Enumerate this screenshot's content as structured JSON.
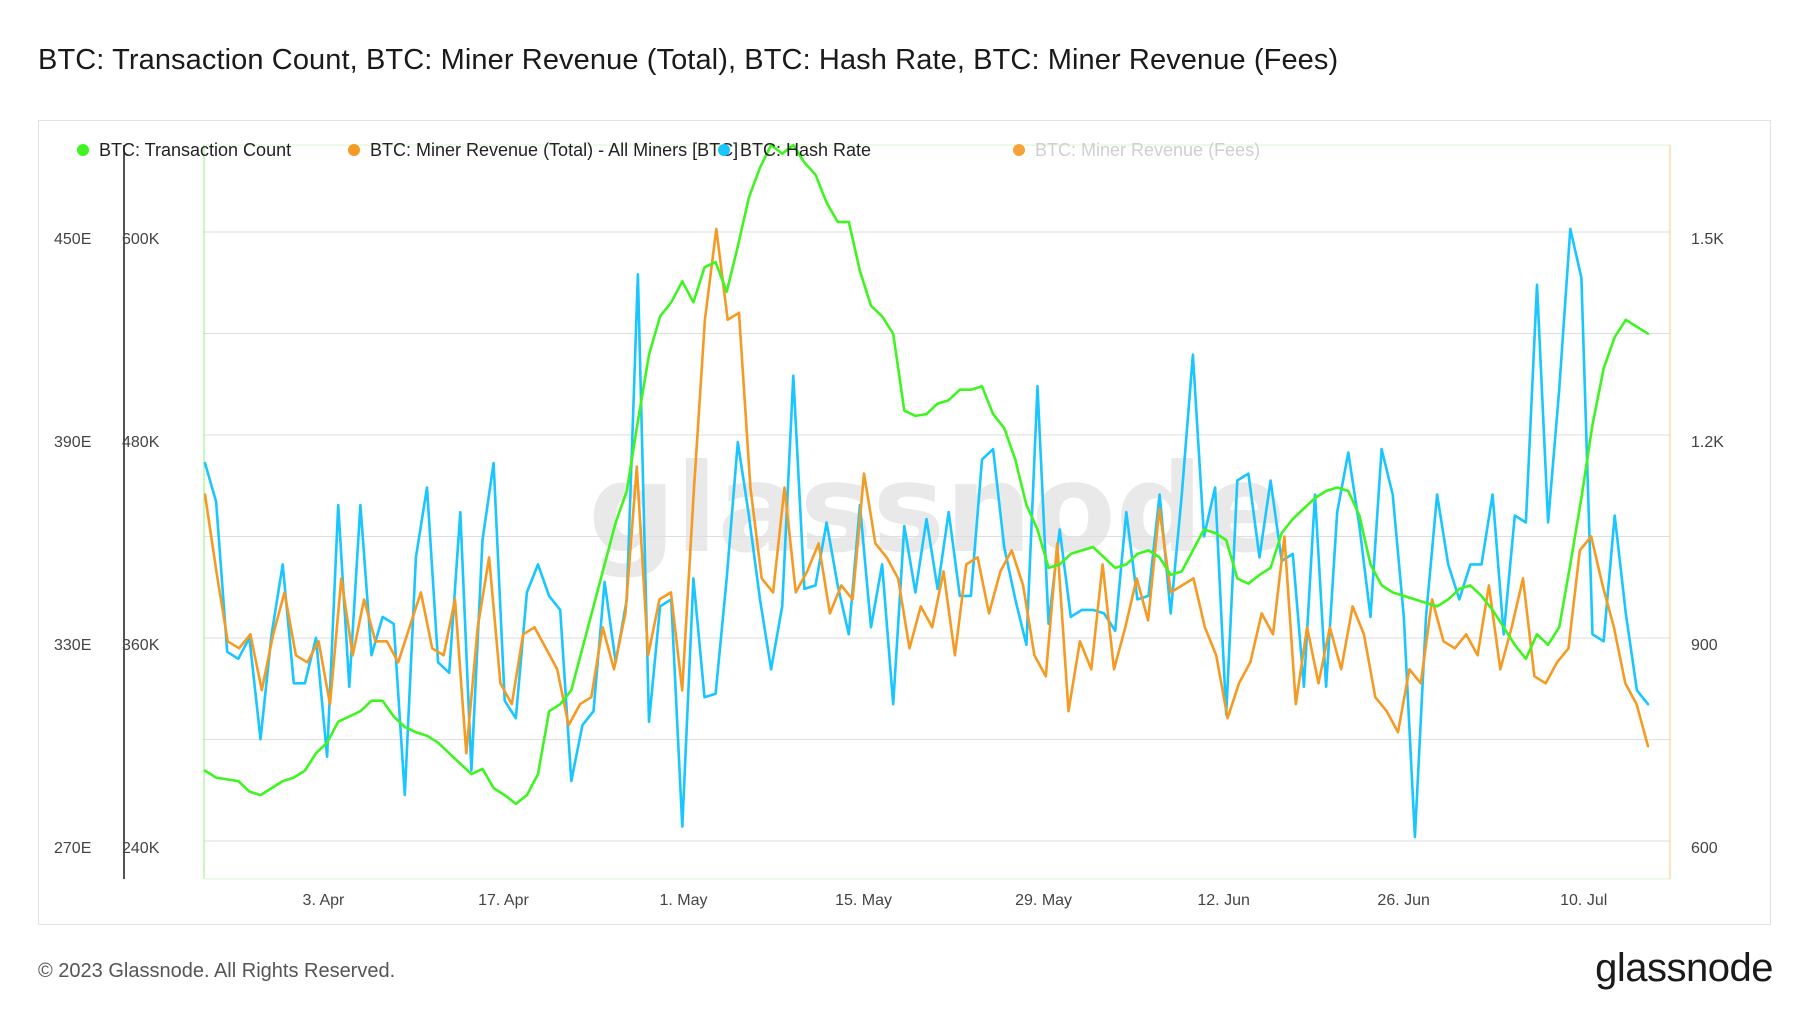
{
  "title": "BTC: Transaction Count, BTC: Miner Revenue (Total), BTC: Hash Rate, BTC: Miner Revenue (Fees)",
  "footer": {
    "copyright": "© 2023 Glassnode. All Rights Reserved.",
    "logo": "glassnode"
  },
  "watermark": "glassnode",
  "chart_data": {
    "type": "line",
    "grid": true,
    "legend_position": "top-left",
    "x_ticks": [
      "3. Apr",
      "17. Apr",
      "1. May",
      "15. May",
      "29. May",
      "12. Jun",
      "26. Jun",
      "10. Jul"
    ],
    "axes": {
      "hash_rate": {
        "ticks": [
          "270E",
          "330E",
          "390E",
          "450E"
        ],
        "range": [
          270,
          480
        ],
        "unit": "EH/s"
      },
      "transaction_count": {
        "ticks": [
          "240K",
          "360K",
          "480K",
          "600K"
        ],
        "range": [
          240000,
          660000
        ]
      },
      "miner_revenue": {
        "ticks": [
          "600",
          "900",
          "1.2K",
          "1.5K"
        ],
        "range": [
          600,
          1650
        ]
      }
    },
    "x_range": [
      "2023-03-23",
      "2023-07-15"
    ],
    "series": [
      {
        "name": "BTC: Transaction Count",
        "color": "#3ef520",
        "axis": "transaction_count",
        "values": [
          302000,
          298000,
          297000,
          296000,
          290000,
          288000,
          292000,
          296000,
          298000,
          302000,
          312000,
          318000,
          330000,
          333000,
          336000,
          342000,
          342000,
          333000,
          327000,
          324000,
          322000,
          318000,
          312000,
          306000,
          300000,
          303000,
          292000,
          288000,
          283000,
          288000,
          300000,
          336000,
          340000,
          348000,
          372000,
          396000,
          420000,
          444000,
          462000,
          502000,
          540000,
          562000,
          570000,
          582000,
          570000,
          590000,
          593000,
          576000,
          602000,
          630000,
          647000,
          660000,
          655000,
          660000,
          650000,
          643000,
          627000,
          616000,
          616000,
          588000,
          568000,
          562000,
          552000,
          508000,
          505000,
          506000,
          512000,
          514000,
          520000,
          520000,
          522000,
          506000,
          498000,
          480000,
          454000,
          440000,
          418000,
          420000,
          426000,
          428000,
          430000,
          424000,
          418000,
          420000,
          426000,
          428000,
          424000,
          414000,
          416000,
          428000,
          440000,
          438000,
          434000,
          412000,
          409000,
          414000,
          418000,
          438000,
          446000,
          452000,
          458000,
          462000,
          464000,
          462000,
          448000,
          420000,
          408000,
          404000,
          402000,
          400000,
          398000,
          396000,
          400000,
          406000,
          408000,
          402000,
          394000,
          384000,
          374000,
          366000,
          380000,
          374000,
          384000,
          420000,
          458000,
          500000,
          532000,
          550000,
          560000,
          556000,
          552000
        ],
        "note_indices_from": 0
      },
      {
        "name": "BTC: Miner Revenue (Total) - All Miners [BTC]",
        "color": "#f59a23",
        "axis": "miner_revenue",
        "values": [
          1150,
          1040,
          940,
          930,
          950,
          870,
          950,
          1010,
          920,
          910,
          940,
          850,
          1030,
          920,
          1000,
          940,
          940,
          910,
          960,
          1010,
          930,
          920,
          1000,
          780,
          960,
          1060,
          880,
          850,
          950,
          960,
          930,
          900,
          820,
          850,
          860,
          960,
          900,
          980,
          1190,
          920,
          1000,
          1010,
          870,
          1150,
          1400,
          1530,
          1400,
          1410,
          1160,
          1030,
          1010,
          1160,
          1010,
          1040,
          1080,
          980,
          1020,
          1000,
          1180,
          1080,
          1060,
          1030,
          930,
          990,
          960,
          1040,
          920,
          1050,
          1060,
          980,
          1040,
          1070,
          1020,
          920,
          890,
          1080,
          840,
          940,
          900,
          1050,
          900,
          960,
          1030,
          970,
          1130,
          1010,
          1020,
          1030,
          960,
          920,
          830,
          880,
          910,
          980,
          950,
          1090,
          850,
          960,
          880,
          960,
          900,
          990,
          950,
          860,
          840,
          810,
          900,
          880,
          1000,
          940,
          930,
          950,
          920,
          1020,
          900,
          960,
          1030,
          890,
          880,
          910,
          930,
          1070,
          1090,
          1020,
          960,
          880,
          850,
          790
        ]
      },
      {
        "name": "BTC: Hash Rate",
        "color": "#19c6ff",
        "axis": "hash_rate",
        "values": [
          389,
          378,
          335,
          333,
          339,
          310,
          340,
          360,
          326,
          326,
          339,
          305,
          377,
          325,
          377,
          334,
          345,
          343,
          294,
          362,
          382,
          332,
          329,
          375,
          301,
          367,
          389,
          321,
          316,
          352,
          360,
          351,
          347,
          298,
          314,
          318,
          355,
          332,
          350,
          443,
          315,
          348,
          350,
          285,
          356,
          322,
          323,
          356,
          395,
          374,
          350,
          330,
          348,
          414,
          353,
          354,
          372,
          354,
          340,
          377,
          342,
          360,
          320,
          371,
          352,
          373,
          353,
          375,
          351,
          351,
          390,
          393,
          365,
          350,
          337,
          411,
          343,
          370,
          345,
          347,
          347,
          346,
          341,
          375,
          350,
          351,
          380,
          346,
          380,
          420,
          368,
          382,
          317,
          384,
          386,
          362,
          384,
          361,
          363,
          325,
          380,
          325,
          375,
          392,
          371,
          345,
          393,
          380,
          345,
          282,
          345,
          380,
          360,
          350,
          360,
          360,
          380,
          340,
          374,
          372,
          440,
          372,
          410,
          456,
          442,
          340,
          338,
          374,
          346,
          324,
          320
        ]
      },
      {
        "name": "BTC: Miner Revenue (Fees)",
        "color": "#f7a23a",
        "axis": "miner_revenue",
        "hidden": true,
        "values": []
      }
    ]
  }
}
